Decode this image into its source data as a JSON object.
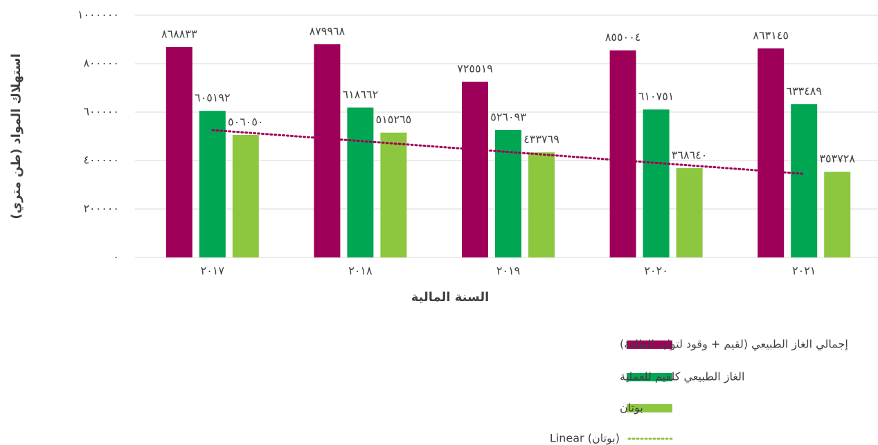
{
  "chart_data": {
    "type": "bar",
    "x_label": "السنة المالية",
    "y_label": "استهلاك المواد (طن متري)",
    "categories": [
      "٢٠١٧",
      "٢٠١٨",
      "٢٠١٩",
      "٢٠٢٠",
      "٢٠٢١"
    ],
    "series": [
      {
        "name": "إجمالي الغاز الطبيعي (لقيم + وقود لتوليد الطاقة)",
        "color": "#9e0059",
        "values": [
          868833,
          879968,
          725519,
          855004,
          863145
        ],
        "value_labels": [
          "٨٦٨٨٣٣",
          "٨٧٩٩٦٨",
          "٧٢٥٥١٩",
          "٨٥٥٠٠٤",
          "٨٦٣١٤٥"
        ]
      },
      {
        "name": "الغاز الطبيعي كلقيم للعملية",
        "color": "#00a651",
        "values": [
          605192,
          618662,
          526093,
          610751,
          633489
        ],
        "value_labels": [
          "٦٠٥١٩٢",
          "٦١٨٦٦٢",
          "٥٢٦٠٩٣",
          "٦١٠٧٥١",
          "٦٣٣٤٨٩"
        ]
      },
      {
        "name": "بوتان",
        "color": "#8dc63f",
        "values": [
          506050,
          515265,
          433769,
          368640,
          353728
        ],
        "value_labels": [
          "٥٠٦٠٥٠",
          "٥١٥٢٦٥",
          "٤٣٣٧٦٩",
          "٣٦٨٦٤٠",
          "٣٥٣٧٢٨"
        ]
      }
    ],
    "trendline": {
      "name": "Linear (بوتان)",
      "series": 2,
      "color": "#9e0059",
      "legend_color": "#8dc63f"
    },
    "ylim": [
      0,
      1000000
    ],
    "yticks": [
      {
        "value": 0,
        "label": "٠"
      },
      {
        "value": 200000,
        "label": "٢٠٠٠٠٠"
      },
      {
        "value": 400000,
        "label": "٤٠٠٠٠٠"
      },
      {
        "value": 600000,
        "label": "٦٠٠٠٠٠"
      },
      {
        "value": 800000,
        "label": "٨٠٠٠٠٠"
      },
      {
        "value": 1000000,
        "label": "١٠٠٠٠٠٠"
      }
    ],
    "grid": true
  }
}
